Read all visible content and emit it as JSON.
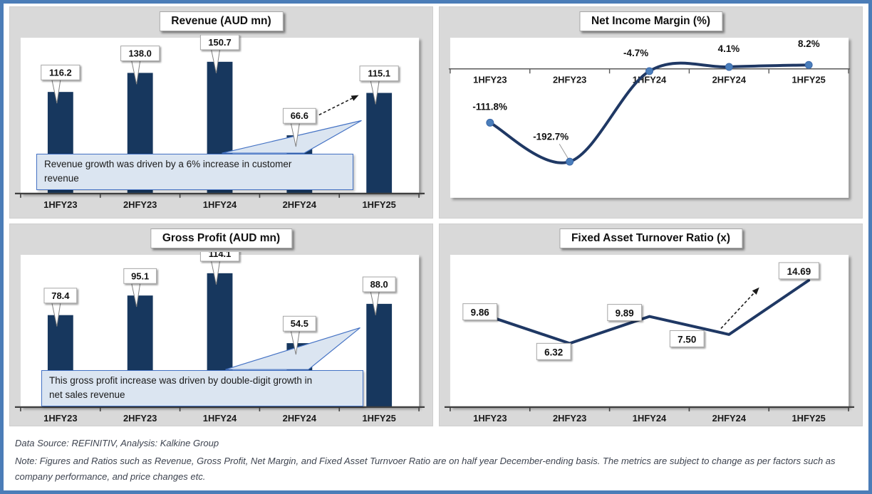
{
  "page": {
    "colors": {
      "outer_border": "#4b7db8",
      "panel_background": "#d9d9d9",
      "bar_fill": "#17375e",
      "line_stroke": "#1f3864",
      "marker_fill": "#4a7ebb",
      "annotation_fill": "#dbe5f1",
      "annotation_border": "#4472c4",
      "axis": "#404040"
    }
  },
  "chart_data": [
    {
      "type": "bar",
      "title": "Revenue (AUD mn)",
      "categories": [
        "1HFY23",
        "2HFY23",
        "1HFY24",
        "2HFY24",
        "1HFY25"
      ],
      "values": [
        116.2,
        138.0,
        150.7,
        66.6,
        115.1
      ],
      "labels": [
        "116.2",
        "138.0",
        "150.7",
        "66.6",
        "115.1"
      ],
      "ylim": [
        0,
        160
      ],
      "grid": false,
      "trend_arrow": true,
      "annotation": "Revenue growth was driven by a 6% increase in customer\nrevenue"
    },
    {
      "type": "line",
      "title": "Net Income Margin (%)",
      "categories": [
        "1HFY23",
        "2HFY23",
        "1HFY24",
        "2HFY24",
        "1HFY25"
      ],
      "values": [
        -111.8,
        -192.7,
        -4.7,
        4.1,
        8.2
      ],
      "labels": [
        "-111.8%",
        "-192.7%",
        "-4.7%",
        "4.1%",
        "8.2%"
      ],
      "ylim": [
        -210,
        30
      ],
      "grid": false,
      "smooth": true,
      "zero_axis_on_top": true
    },
    {
      "type": "bar",
      "title": "Gross Profit (AUD mn)",
      "categories": [
        "1HFY23",
        "2HFY23",
        "1HFY24",
        "2HFY24",
        "1HFY25"
      ],
      "values": [
        78.4,
        95.1,
        114.1,
        54.5,
        88.0
      ],
      "labels": [
        "78.4",
        "95.1",
        "114.1",
        "54.5",
        "88.0"
      ],
      "ylim": [
        0,
        120
      ],
      "grid": false,
      "annotation": "This gross profit increase was driven by double-digit growth in\nnet sales revenue"
    },
    {
      "type": "line",
      "title": "Fixed Asset Turnover Ratio (x)",
      "categories": [
        "1HFY23",
        "2HFY23",
        "1HFY24",
        "2HFY24",
        "1HFY25"
      ],
      "values": [
        9.86,
        6.32,
        9.89,
        7.5,
        14.69
      ],
      "labels": [
        "9.86",
        "6.32",
        "9.89",
        "7.50",
        "14.69"
      ],
      "ylim": [
        0,
        16
      ],
      "grid": false,
      "smooth": false,
      "boxed_labels": true,
      "trend_arrow": true
    }
  ],
  "footer": {
    "source": "Data Source: REFINITIV, Analysis: Kalkine Group",
    "note": "Note: Figures and Ratios such as Revenue, Gross Profit, Net Margin, and Fixed Asset Turnvoer Ratio are on half year December-ending basis. The metrics are subject to change as per factors such as\ncompany performance, and price changes etc."
  }
}
